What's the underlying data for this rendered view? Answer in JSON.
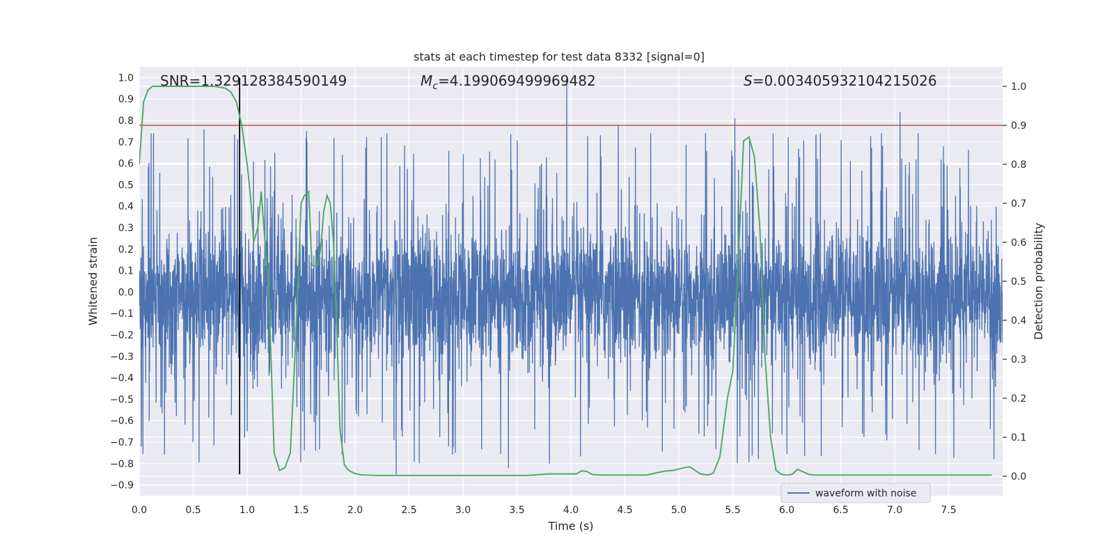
{
  "chart_data": {
    "type": "line",
    "title": "stats at each timestep for test data 8332 [signal=0]",
    "xlabel": "Time (s)",
    "ylabel_left": "Whitened strain",
    "ylabel_right": "Detection probability",
    "xlim": [
      0.0,
      8.0
    ],
    "ylim_left": [
      -0.95,
      1.05
    ],
    "ylim_right": [
      -0.05,
      1.05
    ],
    "x_ticks": [
      "0.0",
      "0.5",
      "1.0",
      "1.5",
      "2.0",
      "2.5",
      "3.0",
      "3.5",
      "4.0",
      "4.5",
      "5.0",
      "5.5",
      "6.0",
      "6.5",
      "7.0",
      "7.5"
    ],
    "y_ticks_left": [
      "1.0",
      "0.9",
      "0.8",
      "0.7",
      "0.6",
      "0.5",
      "0.4",
      "0.3",
      "0.2",
      "0.1",
      "0.0",
      "-0.1",
      "-0.2",
      "-0.3",
      "-0.4",
      "-0.5",
      "-0.6",
      "-0.7",
      "-0.8",
      "-0.9"
    ],
    "y_ticks_right": [
      "1.0",
      "0.9",
      "0.8",
      "0.7",
      "0.6",
      "0.5",
      "0.4",
      "0.3",
      "0.2",
      "0.1",
      "0.0"
    ],
    "grid": true,
    "legend_position": "lower-right",
    "annotations": {
      "snr": "SNR=1.329128384590149",
      "mc_symbol": "M",
      "mc_sub": "c",
      "mc_value": "=4.199069499969482",
      "s_symbol": "S",
      "s_value": "=0.003405932104215026"
    },
    "series": [
      {
        "name": "waveform with noise",
        "color": "#4c72b0",
        "axis": "left",
        "noise_band": [
          -0.3,
          0.26
        ],
        "x_range": [
          0.0,
          8.0
        ],
        "peaks": [
          {
            "x": 3.96,
            "y": 1.0
          },
          {
            "x": 7.05,
            "y": 0.84
          },
          {
            "x": 5.52,
            "y": 0.81
          },
          {
            "x": 4.44,
            "y": 0.78
          },
          {
            "x": 1.55,
            "y": 0.75
          },
          {
            "x": 0.6,
            "y": 0.76
          },
          {
            "x": 2.38,
            "y": -0.85
          },
          {
            "x": 3.8,
            "y": -0.8
          },
          {
            "x": 3.42,
            "y": -0.82
          },
          {
            "x": 1.0,
            "y": -0.65
          },
          {
            "x": 0.02,
            "y": -0.72
          },
          {
            "x": 7.92,
            "y": -0.78
          }
        ]
      },
      {
        "name": "",
        "color": "#55a868",
        "axis": "right",
        "x": [
          0.0,
          0.04,
          0.08,
          0.12,
          0.2,
          0.3,
          0.4,
          0.5,
          0.6,
          0.7,
          0.8,
          0.85,
          0.9,
          0.95,
          1.0,
          1.03,
          1.06,
          1.1,
          1.13,
          1.16,
          1.2,
          1.25,
          1.3,
          1.35,
          1.4,
          1.45,
          1.5,
          1.53,
          1.57,
          1.6,
          1.65,
          1.68,
          1.71,
          1.74,
          1.77,
          1.8,
          1.83,
          1.86,
          1.9,
          1.93,
          1.96,
          2.0,
          2.05,
          2.1,
          2.2,
          2.4,
          2.6,
          2.8,
          3.0,
          3.2,
          3.4,
          3.6,
          3.8,
          3.95,
          4.05,
          4.1,
          4.15,
          4.2,
          4.3,
          4.5,
          4.7,
          4.85,
          4.9,
          4.95,
          5.05,
          5.1,
          5.2,
          5.27,
          5.32,
          5.38,
          5.45,
          5.5,
          5.55,
          5.6,
          5.65,
          5.7,
          5.75,
          5.8,
          5.85,
          5.9,
          5.95,
          6.0,
          6.05,
          6.1,
          6.2,
          6.25,
          6.3,
          6.35,
          6.4,
          6.5,
          6.7,
          6.9,
          7.1,
          7.3,
          7.5,
          7.6,
          7.7,
          7.9
        ],
        "values": [
          0.8,
          0.96,
          0.99,
          1.0,
          1.0,
          1.0,
          1.0,
          1.0,
          1.0,
          1.0,
          0.995,
          0.985,
          0.96,
          0.9,
          0.8,
          0.72,
          0.6,
          0.64,
          0.73,
          0.62,
          0.48,
          0.06,
          0.015,
          0.022,
          0.06,
          0.35,
          0.7,
          0.72,
          0.73,
          0.54,
          0.54,
          0.58,
          0.68,
          0.72,
          0.7,
          0.6,
          0.38,
          0.12,
          0.03,
          0.018,
          0.012,
          0.007,
          0.004,
          0.003,
          0.002,
          0.002,
          0.002,
          0.002,
          0.002,
          0.002,
          0.002,
          0.002,
          0.006,
          0.006,
          0.006,
          0.014,
          0.012,
          0.004,
          0.003,
          0.003,
          0.003,
          0.012,
          0.014,
          0.015,
          0.022,
          0.024,
          0.006,
          0.003,
          0.008,
          0.05,
          0.2,
          0.27,
          0.55,
          0.86,
          0.87,
          0.82,
          0.64,
          0.3,
          0.1,
          0.015,
          0.005,
          0.003,
          0.005,
          0.018,
          0.005,
          0.003,
          0.003,
          0.003,
          0.003,
          0.003,
          0.003,
          0.003,
          0.003,
          0.003,
          0.003,
          0.003,
          0.003,
          0.003
        ]
      }
    ],
    "hlines": [
      {
        "axis": "right",
        "y": 0.9,
        "color": "#c44e52"
      }
    ],
    "vlines": [
      {
        "x": 0.93,
        "y_range": [
          -0.85,
          1.0
        ],
        "color": "#000000"
      }
    ]
  }
}
